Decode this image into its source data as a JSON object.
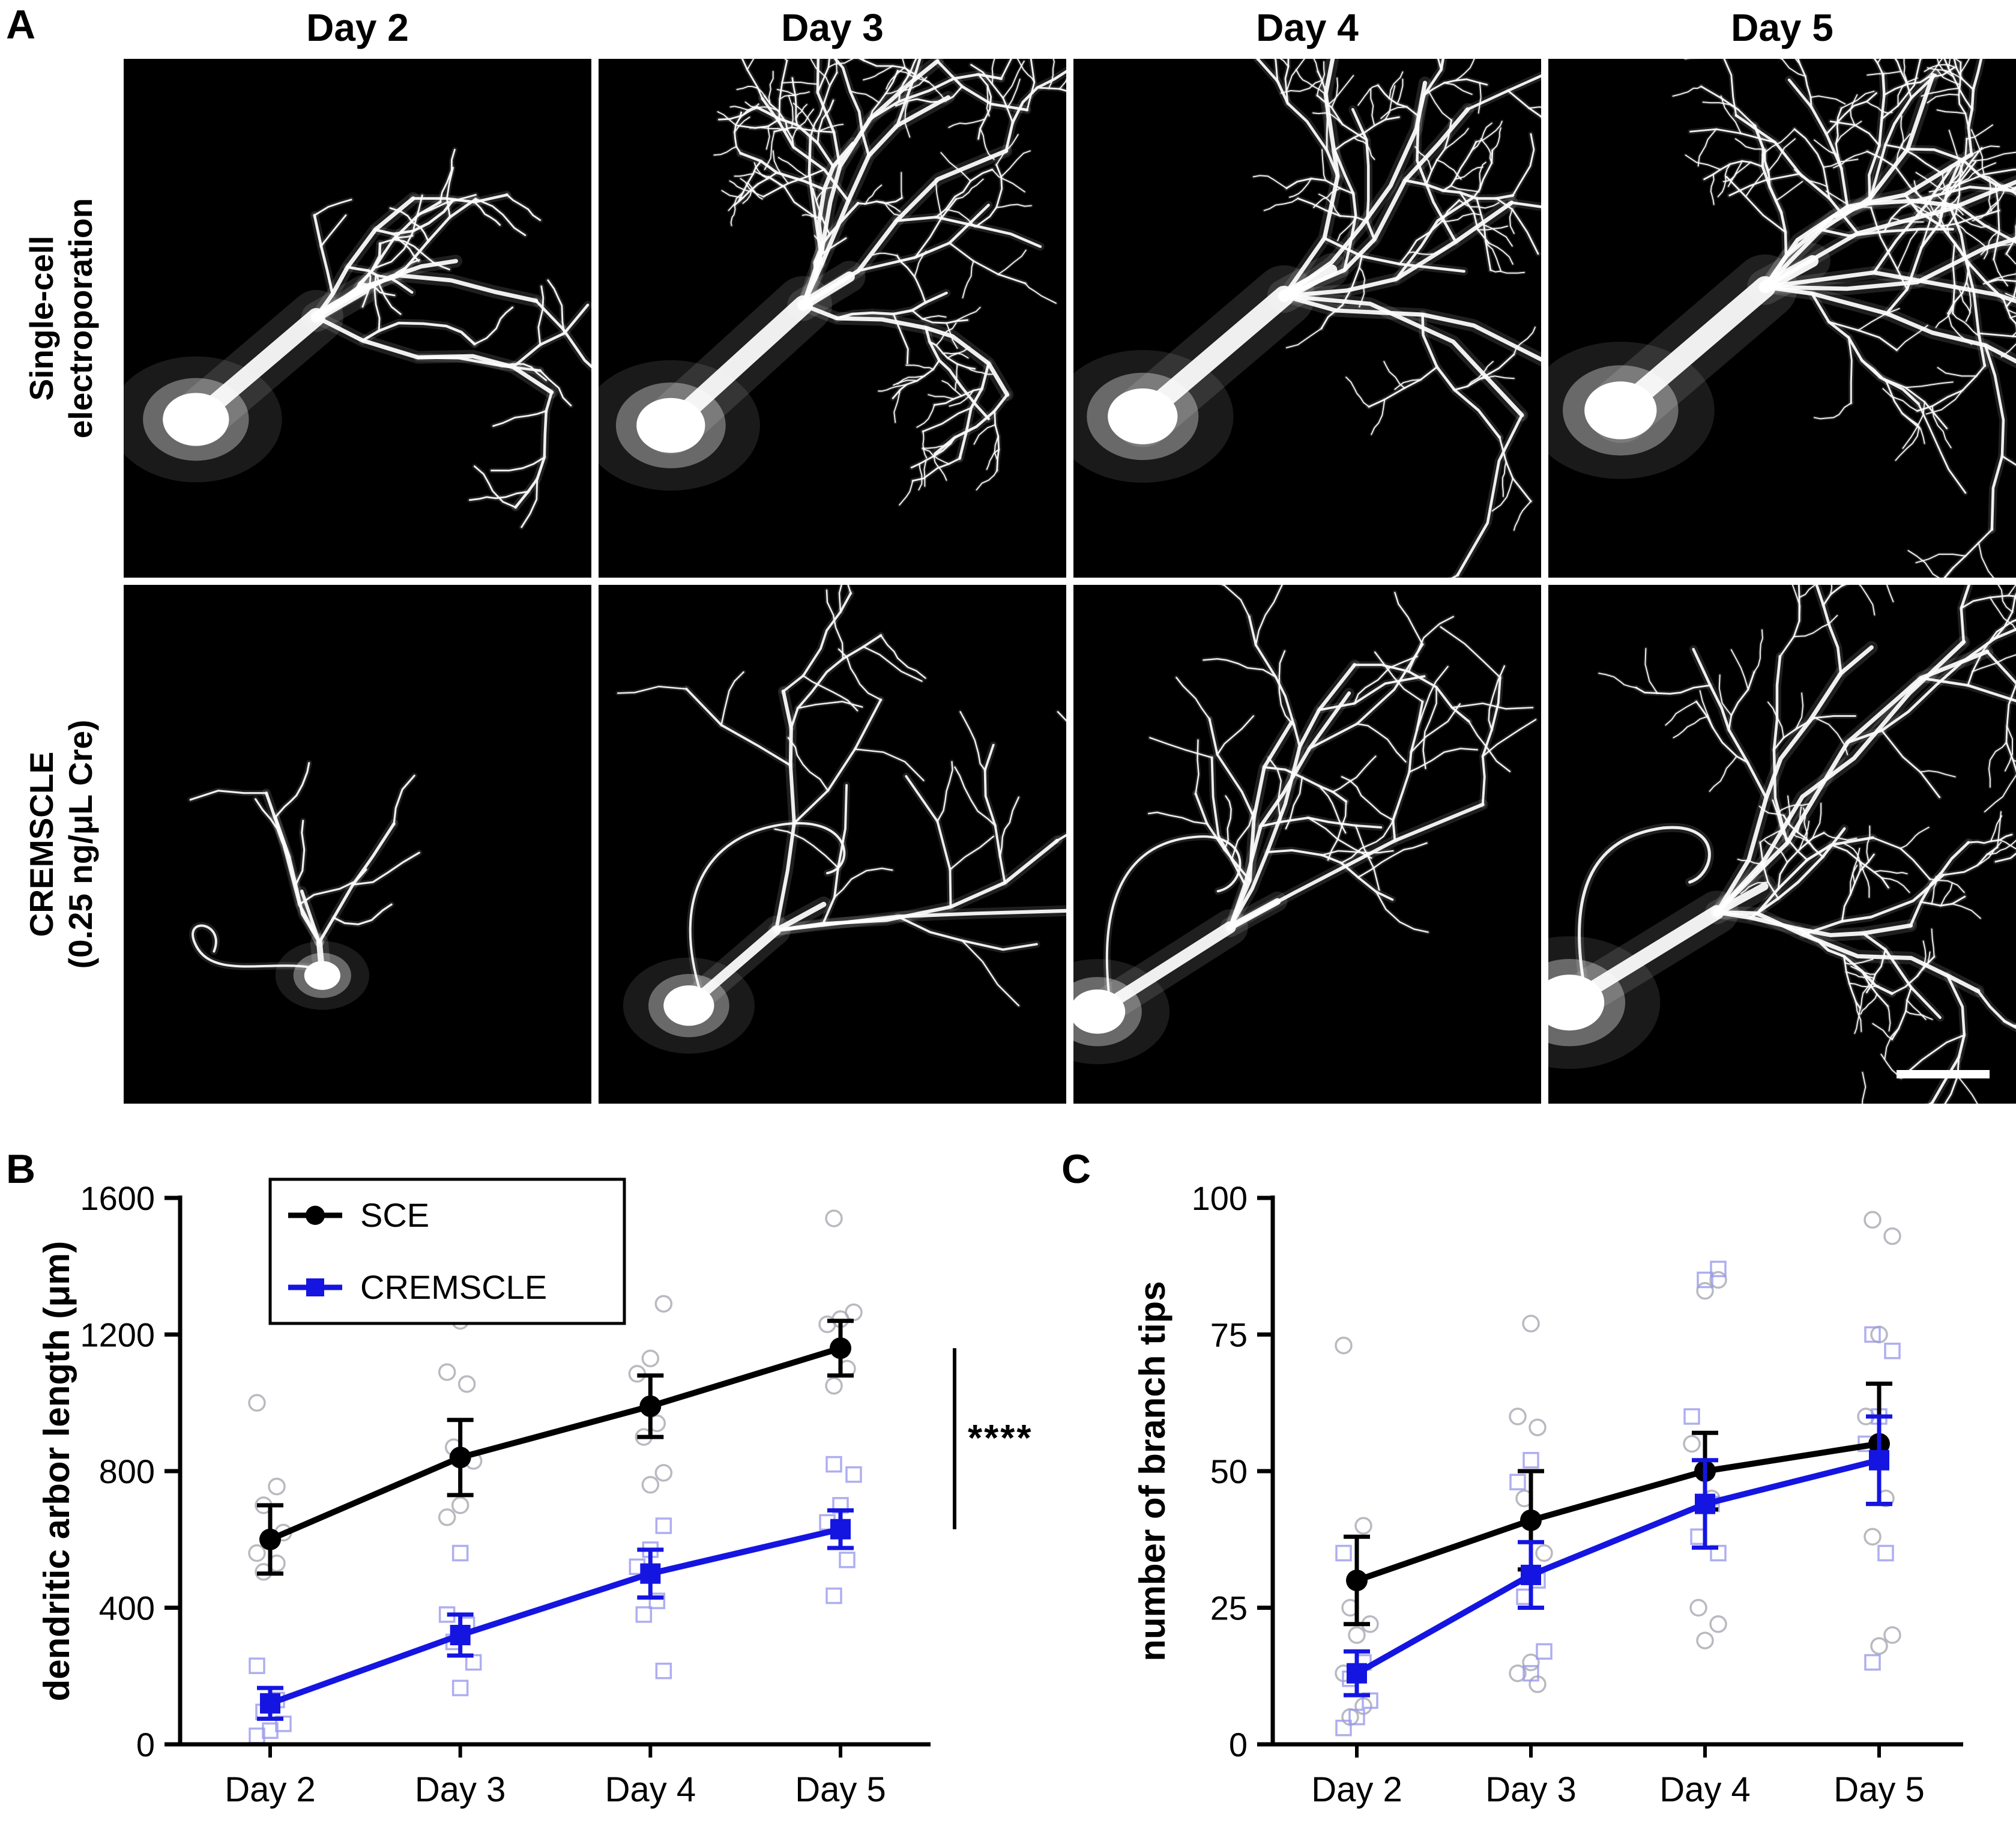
{
  "figure": {
    "background": "#ffffff",
    "panel_a": {
      "label": "A",
      "column_headers": [
        "Day 2",
        "Day 3",
        "Day 4",
        "Day 5"
      ],
      "row_labels": [
        [
          "Single-cell",
          "electroporation"
        ],
        [
          "CREMSCLE",
          "(0.25 ng/μL Cre)"
        ]
      ]
    },
    "panel_b": {
      "label": "B"
    },
    "panel_c": {
      "label": "C"
    }
  },
  "chart_data": [
    {
      "id": "B",
      "type": "line",
      "panel_label": "B",
      "categories": [
        "Day 2",
        "Day 3",
        "Day 4",
        "Day 5"
      ],
      "xlabel": "",
      "ylabel": "dendritic arbor length (μm)",
      "ylim": [
        0,
        1600
      ],
      "yticks": [
        0,
        400,
        800,
        1200,
        1600
      ],
      "grid": false,
      "legend": {
        "show": true,
        "position": "top-left"
      },
      "significance": {
        "label": "****",
        "between": [
          "SCE",
          "CREMSCLE"
        ],
        "at_category": "Day 5"
      },
      "series": [
        {
          "name": "SCE",
          "color": "#000000",
          "marker": "circle",
          "scatter_color": "#a8a8b2",
          "mean": [
            600,
            840,
            990,
            1160
          ],
          "sem": [
            100,
            110,
            90,
            80
          ],
          "scatter": [
            [
              1000,
              755,
              700,
              620,
              600,
              560,
              530,
              505
            ],
            [
              1240,
              1090,
              1055,
              870,
              830,
              700,
              665
            ],
            [
              1290,
              1130,
              1085,
              940,
              900,
              795,
              760
            ],
            [
              1540,
              1265,
              1245,
              1230,
              1100,
              1050
            ]
          ]
        },
        {
          "name": "CREMSCLE",
          "color": "#1515e1",
          "marker": "square",
          "scatter_color": "#9a9aec",
          "mean": [
            120,
            320,
            500,
            630
          ],
          "sem": [
            45,
            60,
            70,
            55
          ],
          "scatter": [
            [
              230,
              130,
              95,
              60,
              40,
              25
            ],
            [
              560,
              380,
              350,
              300,
              240,
              165
            ],
            [
              640,
              570,
              520,
              420,
              380,
              215
            ],
            [
              820,
              790,
              700,
              650,
              540,
              435
            ]
          ]
        }
      ]
    },
    {
      "id": "C",
      "type": "line",
      "panel_label": "C",
      "categories": [
        "Day 2",
        "Day 3",
        "Day 4",
        "Day 5"
      ],
      "xlabel": "",
      "ylabel": "number of branch tips",
      "ylim": [
        0,
        100
      ],
      "yticks": [
        0,
        25,
        50,
        75,
        100
      ],
      "grid": false,
      "legend": {
        "show": false
      },
      "series": [
        {
          "name": "SCE",
          "color": "#000000",
          "marker": "circle",
          "scatter_color": "#a8a8b2",
          "mean": [
            30,
            41,
            50,
            55
          ],
          "sem": [
            8,
            9,
            7,
            11
          ],
          "scatter": [
            [
              73,
              40,
              25,
              22,
              20,
              13,
              7,
              5
            ],
            [
              77,
              60,
              58,
              45,
              35,
              15,
              13,
              11
            ],
            [
              85,
              83,
              55,
              45,
              25,
              22,
              19
            ],
            [
              96,
              93,
              75,
              60,
              45,
              38,
              20,
              18
            ]
          ]
        },
        {
          "name": "CREMSCLE",
          "color": "#1515e1",
          "marker": "square",
          "scatter_color": "#9a9aec",
          "mean": [
            13,
            31,
            44,
            52
          ],
          "sem": [
            4,
            6,
            8,
            8
          ],
          "scatter": [
            [
              35,
              15,
              12,
              8,
              5,
              3
            ],
            [
              52,
              48,
              30,
              27,
              17,
              13
            ],
            [
              87,
              85,
              60,
              44,
              38,
              35
            ],
            [
              75,
              72,
              60,
              55,
              35,
              15
            ]
          ]
        }
      ]
    }
  ]
}
